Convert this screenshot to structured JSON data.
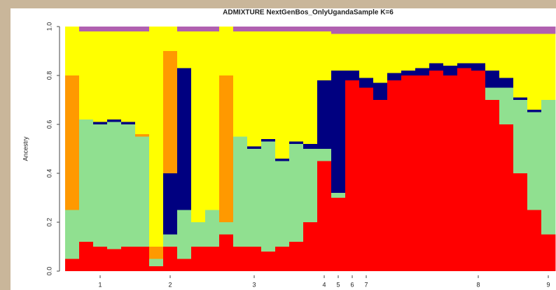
{
  "chart_data": {
    "type": "bar",
    "stacked": true,
    "title": "ADMIXTURE NextGenBos_OnlyUgandaSample K=6",
    "y_label": "Ancestry",
    "ylim": [
      0,
      1
    ],
    "yticks": [
      {
        "value": 0,
        "label": "0.0"
      },
      0.2,
      0.4,
      0.6,
      0.8,
      {
        "value": 1,
        "label": "1.0"
      }
    ],
    "categories": [
      null,
      null,
      "1",
      null,
      null,
      null,
      null,
      "2",
      null,
      null,
      null,
      null,
      null,
      "3",
      null,
      null,
      null,
      null,
      "4",
      "5",
      "6",
      "7",
      null,
      null,
      null,
      null,
      null,
      null,
      null,
      "8",
      null,
      null,
      null,
      null,
      "9"
    ],
    "series": [
      {
        "color": "#ff0000",
        "values": [
          0.05,
          0.12,
          0.1,
          0.09,
          0.1,
          0.1,
          0.02,
          0.1,
          0.05,
          0.1,
          0.1,
          0.15,
          0.1,
          0.1,
          0.08,
          0.1,
          0.12,
          0.2,
          0.45,
          0.3,
          0.78,
          0.75,
          0.7,
          0.78,
          0.8,
          0.8,
          0.82,
          0.8,
          0.83,
          0.82,
          0.7,
          0.6,
          0.4,
          0.25,
          0.15
        ]
      },
      {
        "color": "#90e090",
        "values": [
          0.2,
          0.5,
          0.5,
          0.52,
          0.5,
          0.45,
          0.03,
          0.05,
          0.2,
          0.1,
          0.15,
          0.05,
          0.45,
          0.4,
          0.45,
          0.35,
          0.4,
          0.3,
          0.05,
          0.02,
          0,
          0,
          0,
          0,
          0,
          0,
          0,
          0,
          0,
          0,
          0.05,
          0.15,
          0.3,
          0.4,
          0.55
        ]
      },
      {
        "color": "#000080",
        "values": [
          0,
          0,
          0.01,
          0.01,
          0.01,
          0,
          0,
          0.25,
          0.58,
          0,
          0,
          0,
          0,
          0.01,
          0.01,
          0.01,
          0.01,
          0.02,
          0.28,
          0.5,
          0.04,
          0.04,
          0.07,
          0.03,
          0.02,
          0.03,
          0.03,
          0.04,
          0.02,
          0.03,
          0.07,
          0.04,
          0.01,
          0.01,
          0
        ]
      },
      {
        "color": "#ff9900",
        "values": [
          0.55,
          0,
          0,
          0,
          0,
          0.01,
          0.05,
          0.5,
          0,
          0,
          0,
          0.6,
          0,
          0,
          0,
          0,
          0,
          0,
          0,
          0,
          0,
          0,
          0,
          0,
          0,
          0,
          0,
          0,
          0,
          0,
          0,
          0,
          0,
          0,
          0
        ]
      },
      {
        "color": "#ffff00",
        "values": [
          0.2,
          0.36,
          0.37,
          0.36,
          0.37,
          0.42,
          0.9,
          0.1,
          0.15,
          0.78,
          0.73,
          0.2,
          0.43,
          0.47,
          0.44,
          0.52,
          0.45,
          0.46,
          0.2,
          0.15,
          0.15,
          0.18,
          0.2,
          0.16,
          0.15,
          0.14,
          0.12,
          0.13,
          0.12,
          0.12,
          0.15,
          0.18,
          0.26,
          0.31,
          0.27
        ]
      },
      {
        "color": "#b060b0",
        "values": [
          0,
          0.02,
          0.02,
          0.02,
          0.02,
          0.02,
          0,
          0,
          0.02,
          0.02,
          0.02,
          0,
          0.02,
          0.02,
          0.02,
          0.02,
          0.02,
          0.02,
          0.02,
          0.03,
          0.03,
          0.03,
          0.03,
          0.03,
          0.03,
          0.03,
          0.03,
          0.03,
          0.03,
          0.03,
          0.03,
          0.03,
          0.03,
          0.03,
          0.03
        ]
      }
    ]
  }
}
